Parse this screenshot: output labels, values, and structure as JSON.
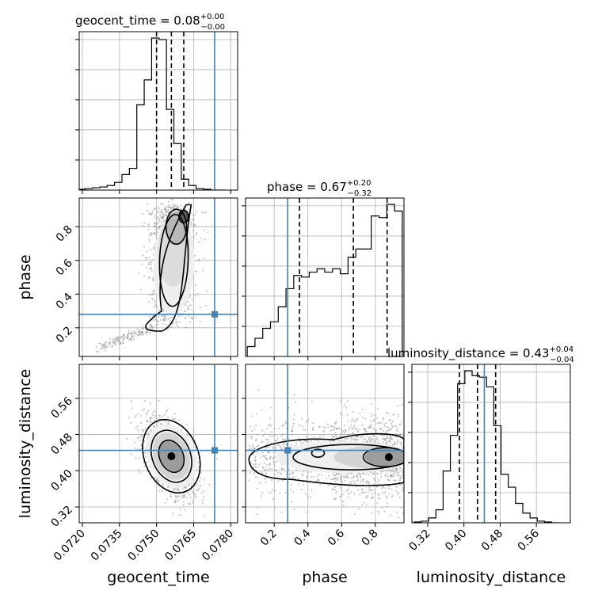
{
  "chart_data": {
    "type": "corner",
    "parameters": [
      "geocent_time",
      "phase",
      "luminosity_distance"
    ],
    "titles": [
      {
        "param": "geocent_time",
        "text": "geocent_time = 0.08",
        "upper": "+0.00",
        "lower": "−0.00"
      },
      {
        "param": "phase",
        "text": "phase = 0.67",
        "upper": "+0.20",
        "lower": "−0.32"
      },
      {
        "param": "luminosity_distance",
        "text": "luminosity_distance = 0.43",
        "upper": "+0.04",
        "lower": "−0.04"
      }
    ],
    "axis_labels": {
      "x": [
        "geocent_time",
        "phase",
        "luminosity_distance"
      ],
      "y": [
        "phase",
        "luminosity_distance"
      ]
    },
    "ranges": {
      "geocent_time": [
        0.07187,
        0.07828
      ],
      "phase": [
        0.03,
        0.97
      ],
      "luminosity_distance": [
        0.285,
        0.635
      ]
    },
    "ticks": {
      "geocent_time": [
        "0.0720",
        "0.0735",
        "0.0750",
        "0.0765",
        "0.0780"
      ],
      "phase": [
        "0.2",
        "0.4",
        "0.6",
        "0.8"
      ],
      "luminosity_distance": [
        "0.32",
        "0.40",
        "0.48",
        "0.56"
      ]
    },
    "truths": {
      "geocent_time": 0.07735,
      "phase": 0.28,
      "luminosity_distance": 0.445
    },
    "quantiles": {
      "geocent_time": [
        0.075,
        0.0756,
        0.0761
      ],
      "phase": [
        0.35,
        0.67,
        0.87
      ],
      "luminosity_distance": [
        0.39,
        0.43,
        0.47
      ]
    },
    "histograms": {
      "geocent_time": {
        "range": [
          0.0718,
          0.0778
        ],
        "counts": [
          0.5,
          1,
          1.5,
          2,
          3,
          5,
          10,
          14,
          55,
          71,
          98,
          97,
          52,
          30,
          7,
          3,
          1,
          0.5,
          0,
          0
        ]
      },
      "phase": {
        "range": [
          0.04,
          0.96
        ],
        "counts": [
          6,
          11,
          17,
          21,
          30,
          41,
          49,
          48,
          51,
          53,
          51,
          53,
          50,
          60,
          65,
          65,
          85,
          84,
          92,
          88
        ]
      },
      "luminosity_distance": {
        "range": [
          0.29,
          0.61
        ],
        "counts": [
          0.5,
          1,
          3,
          8,
          32,
          54,
          86,
          94,
          91,
          90,
          84,
          60,
          30,
          22,
          12,
          6,
          3,
          1,
          0.5,
          0
        ]
      }
    },
    "grid": true,
    "colors": {
      "truth": "#4682b4",
      "hist": "#000000",
      "points": "#8a8a8a"
    }
  }
}
